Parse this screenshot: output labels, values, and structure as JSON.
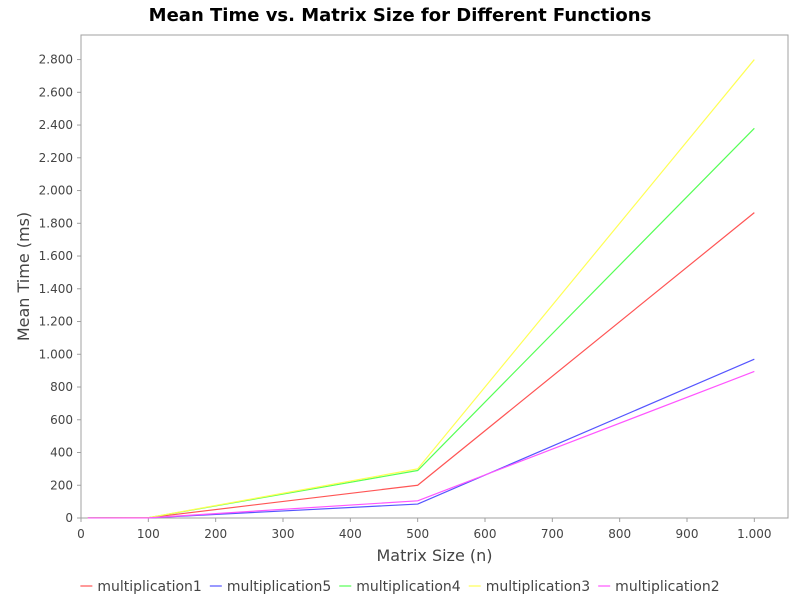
{
  "chart_data": {
    "type": "line",
    "title": "Mean Time vs. Matrix Size for Different Functions",
    "xlabel": "Matrix Size (n)",
    "ylabel": "Mean Time (ms)",
    "xlim": [
      0,
      1050
    ],
    "ylim": [
      0,
      2950
    ],
    "x_ticks": [
      0,
      100,
      200,
      300,
      400,
      500,
      600,
      700,
      800,
      900,
      1000
    ],
    "x_tick_labels": [
      "0",
      "100",
      "200",
      "300",
      "400",
      "500",
      "600",
      "700",
      "800",
      "900",
      "1.000"
    ],
    "y_ticks": [
      0,
      200,
      400,
      600,
      800,
      1000,
      1200,
      1400,
      1600,
      1800,
      2000,
      2200,
      2400,
      2600,
      2800
    ],
    "y_tick_labels": [
      "0",
      "200",
      "400",
      "600",
      "800",
      "1.000",
      "1.200",
      "1.400",
      "1.600",
      "1.800",
      "2.000",
      "2.200",
      "2.400",
      "2.600",
      "2.800"
    ],
    "grid": false,
    "legend_position": "bottom",
    "x": [
      10,
      100,
      500,
      1000
    ],
    "series": [
      {
        "name": "multiplication1",
        "color": "#ff5555",
        "values": [
          0.5,
          2,
          200,
          1865
        ]
      },
      {
        "name": "multiplication5",
        "color": "#5555ff",
        "values": [
          0.5,
          1,
          85,
          970
        ]
      },
      {
        "name": "multiplication4",
        "color": "#55ff55",
        "values": [
          0.5,
          2,
          290,
          2380
        ]
      },
      {
        "name": "multiplication3",
        "color": "#ffff55",
        "values": [
          0.5,
          2,
          300,
          2800
        ]
      },
      {
        "name": "multiplication2",
        "color": "#ff55ff",
        "values": [
          0.5,
          1,
          105,
          895
        ]
      }
    ]
  }
}
